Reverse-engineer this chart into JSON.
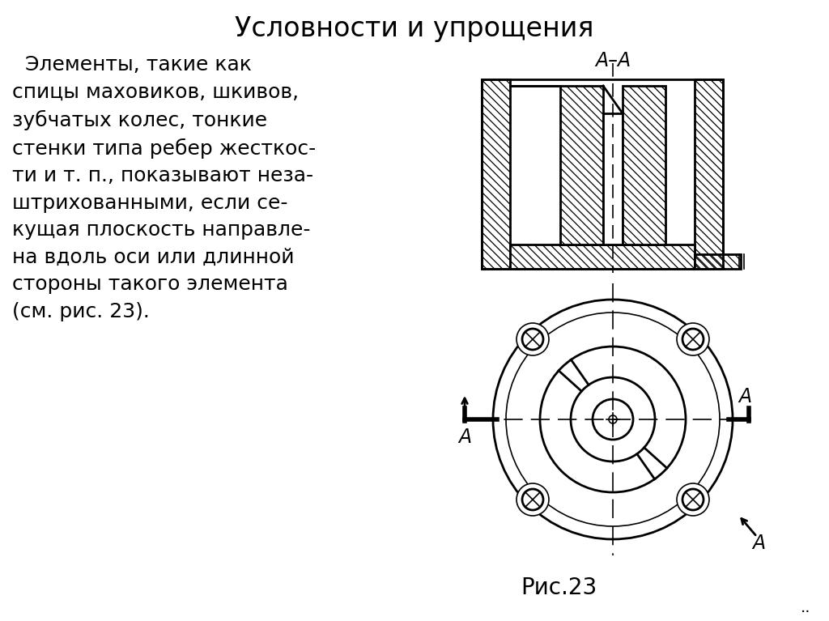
{
  "title": "Условности и упрощения",
  "body_text": "  Элементы, такие как\nспицы маховиков, шкивов,\nзубчатых колес, тонкие\nстенки типа ребер жесткос-\nти и т. п., показывают неза-\nштрихованными, если се-\nкущая плоскость направле-\nна вдоль оси или длинной\nстороны такого элемента\n(см. рис. 23).",
  "caption": "Рис.23",
  "bg_color": "#ffffff",
  "title_fontsize": 24,
  "body_fontsize": 18,
  "caption_fontsize": 20
}
